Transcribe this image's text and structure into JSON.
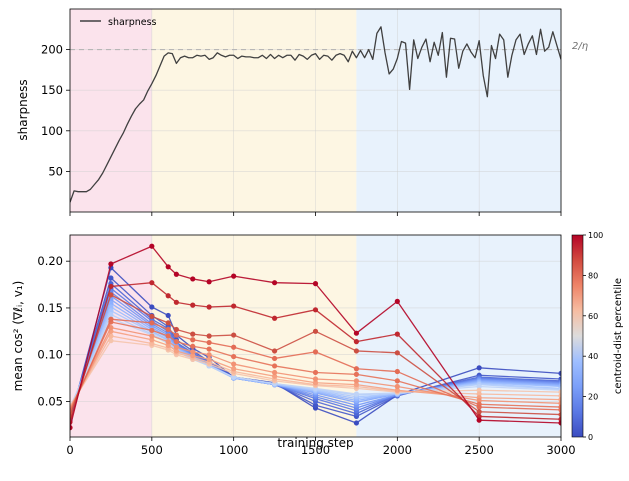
{
  "chart_data": [
    {
      "type": "line",
      "xlabel": "",
      "ylabel": "sharpness",
      "xlim": [
        0,
        3000
      ],
      "ylim": [
        0,
        250
      ],
      "yticks": [
        50,
        100,
        150,
        200
      ],
      "yticklabels": [
        "50",
        "100",
        "150",
        "200"
      ],
      "grid": true,
      "legend_position": "top-left",
      "regions": [
        {
          "x0": 0,
          "x1": 500,
          "color": "#fbe3ec"
        },
        {
          "x0": 500,
          "x1": 1750,
          "color": "#fdf6e3"
        },
        {
          "x0": 1750,
          "x1": 3000,
          "color": "#e8f2fc"
        }
      ],
      "reference_line": {
        "y": 200,
        "label": "2/η",
        "color": "#b0b0b0"
      },
      "series": [
        {
          "name": "sharpness",
          "color": "#404040",
          "x": [
            0,
            25,
            50,
            75,
            100,
            125,
            150,
            175,
            200,
            225,
            250,
            275,
            300,
            325,
            350,
            375,
            400,
            425,
            450,
            475,
            500,
            525,
            550,
            575,
            600,
            625,
            650,
            675,
            700,
            725,
            750,
            775,
            800,
            825,
            850,
            875,
            900,
            925,
            950,
            975,
            1000,
            1025,
            1050,
            1075,
            1100,
            1125,
            1150,
            1175,
            1200,
            1225,
            1250,
            1275,
            1300,
            1325,
            1350,
            1375,
            1400,
            1425,
            1450,
            1475,
            1500,
            1525,
            1550,
            1575,
            1600,
            1625,
            1650,
            1675,
            1700,
            1725,
            1750,
            1775,
            1800,
            1825,
            1850,
            1875,
            1900,
            1925,
            1950,
            1975,
            2000,
            2025,
            2050,
            2075,
            2100,
            2125,
            2150,
            2175,
            2200,
            2225,
            2250,
            2275,
            2300,
            2325,
            2350,
            2375,
            2400,
            2425,
            2450,
            2475,
            2500,
            2525,
            2550,
            2575,
            2600,
            2625,
            2650,
            2675,
            2700,
            2725,
            2750,
            2775,
            2800,
            2825,
            2850,
            2875,
            2900,
            2925,
            2950,
            2975,
            3000
          ],
          "y": [
            12,
            26,
            25,
            25,
            25,
            28,
            34,
            40,
            48,
            58,
            68,
            78,
            88,
            97,
            108,
            118,
            127,
            133,
            138,
            149,
            158,
            168,
            180,
            192,
            196,
            195,
            183,
            190,
            192,
            190,
            190,
            193,
            192,
            193,
            188,
            190,
            196,
            193,
            191,
            193,
            193,
            189,
            192,
            191,
            191,
            190,
            190,
            193,
            189,
            194,
            189,
            193,
            190,
            193,
            193,
            187,
            194,
            192,
            188,
            193,
            195,
            188,
            193,
            192,
            187,
            193,
            195,
            193,
            185,
            198,
            190,
            199,
            190,
            200,
            188,
            220,
            228,
            196,
            170,
            176,
            189,
            210,
            208,
            151,
            212,
            189,
            203,
            213,
            185,
            209,
            193,
            221,
            166,
            214,
            213,
            177,
            198,
            207,
            197,
            190,
            211,
            168,
            142,
            205,
            189,
            219,
            212,
            166,
            193,
            212,
            219,
            194,
            207,
            217,
            194,
            225,
            198,
            203,
            222,
            205,
            188
          ]
        }
      ]
    },
    {
      "type": "line",
      "xlabel": "training step",
      "ylabel": "mean cos² (∇ℓᵢ, v₁)",
      "xlim": [
        0,
        3000
      ],
      "ylim": [
        0.012,
        0.228
      ],
      "xticks": [
        0,
        500,
        1000,
        1500,
        2000,
        2500,
        3000
      ],
      "xticklabels": [
        "0",
        "500",
        "1000",
        "1500",
        "2000",
        "2500",
        "3000"
      ],
      "yticks": [
        0.05,
        0.1,
        0.15,
        0.2
      ],
      "yticklabels": [
        "0.05",
        "0.10",
        "0.15",
        "0.20"
      ],
      "grid": true,
      "colorbar": {
        "label": "centroid-dist percentile",
        "ticks": [
          0,
          20,
          40,
          60,
          80,
          100
        ],
        "ticklabels": [
          "0",
          "20",
          "40",
          "60",
          "80",
          "100"
        ],
        "colormap": "coolwarm"
      },
      "x": [
        0,
        250,
        500,
        600,
        650,
        750,
        850,
        1000,
        1250,
        1500,
        1750,
        2000,
        2500,
        3000
      ],
      "series": [
        {
          "percentile": 0,
          "color": "#3b4cc0",
          "values": [
            0.03,
            0.193,
            0.151,
            0.142,
            0.121,
            0.107,
            0.097,
            0.076,
            0.07,
            0.043,
            0.027,
            0.057,
            0.086,
            0.08
          ]
        },
        {
          "percentile": 5,
          "color": "#4257c9",
          "values": [
            0.032,
            0.182,
            0.142,
            0.13,
            0.116,
            0.104,
            0.093,
            0.076,
            0.069,
            0.046,
            0.034,
            0.056,
            0.078,
            0.074
          ]
        },
        {
          "percentile": 10,
          "color": "#4c66d6",
          "values": [
            0.034,
            0.176,
            0.138,
            0.128,
            0.113,
            0.102,
            0.092,
            0.075,
            0.068,
            0.05,
            0.037,
            0.057,
            0.076,
            0.072
          ]
        },
        {
          "percentile": 15,
          "color": "#5977e3",
          "values": [
            0.036,
            0.171,
            0.136,
            0.125,
            0.112,
            0.101,
            0.091,
            0.075,
            0.068,
            0.053,
            0.04,
            0.057,
            0.075,
            0.071
          ]
        },
        {
          "percentile": 20,
          "color": "#6687ed",
          "values": [
            0.037,
            0.167,
            0.133,
            0.123,
            0.111,
            0.1,
            0.09,
            0.075,
            0.068,
            0.055,
            0.043,
            0.057,
            0.074,
            0.07
          ]
        },
        {
          "percentile": 25,
          "color": "#7396f5",
          "values": [
            0.038,
            0.163,
            0.131,
            0.121,
            0.11,
            0.099,
            0.09,
            0.075,
            0.068,
            0.057,
            0.046,
            0.057,
            0.073,
            0.069
          ]
        },
        {
          "percentile": 30,
          "color": "#80a3fa",
          "values": [
            0.039,
            0.159,
            0.129,
            0.119,
            0.109,
            0.098,
            0.089,
            0.075,
            0.068,
            0.059,
            0.049,
            0.058,
            0.072,
            0.068
          ]
        },
        {
          "percentile": 35,
          "color": "#8db0fe",
          "values": [
            0.04,
            0.155,
            0.127,
            0.118,
            0.108,
            0.098,
            0.089,
            0.075,
            0.068,
            0.06,
            0.051,
            0.058,
            0.071,
            0.067
          ]
        },
        {
          "percentile": 40,
          "color": "#9abbff",
          "values": [
            0.041,
            0.151,
            0.125,
            0.116,
            0.107,
            0.097,
            0.088,
            0.075,
            0.068,
            0.061,
            0.053,
            0.058,
            0.07,
            0.066
          ]
        },
        {
          "percentile": 45,
          "color": "#a7c5fe",
          "values": [
            0.042,
            0.147,
            0.124,
            0.115,
            0.106,
            0.096,
            0.088,
            0.076,
            0.069,
            0.062,
            0.055,
            0.058,
            0.069,
            0.064
          ]
        },
        {
          "percentile": 50,
          "color": "#b3cdfb",
          "values": [
            0.043,
            0.143,
            0.122,
            0.113,
            0.105,
            0.096,
            0.088,
            0.076,
            0.069,
            0.063,
            0.057,
            0.059,
            0.068,
            0.063
          ]
        },
        {
          "percentile": 55,
          "color": "#bfd3f6",
          "values": [
            0.044,
            0.139,
            0.121,
            0.112,
            0.104,
            0.095,
            0.088,
            0.076,
            0.069,
            0.064,
            0.058,
            0.059,
            0.066,
            0.062
          ]
        },
        {
          "percentile": 60,
          "color": "#f5c4ac",
          "values": [
            0.045,
            0.115,
            0.11,
            0.105,
            0.1,
            0.095,
            0.09,
            0.08,
            0.072,
            0.067,
            0.064,
            0.06,
            0.062,
            0.06
          ]
        },
        {
          "percentile": 65,
          "color": "#f7b89c",
          "values": [
            0.044,
            0.12,
            0.112,
            0.107,
            0.102,
            0.097,
            0.092,
            0.082,
            0.074,
            0.068,
            0.066,
            0.061,
            0.058,
            0.056
          ]
        },
        {
          "percentile": 70,
          "color": "#f5a081",
          "values": [
            0.043,
            0.125,
            0.116,
            0.11,
            0.104,
            0.099,
            0.095,
            0.085,
            0.077,
            0.07,
            0.068,
            0.062,
            0.054,
            0.052
          ]
        },
        {
          "percentile": 75,
          "color": "#f29274",
          "values": [
            0.042,
            0.129,
            0.12,
            0.114,
            0.108,
            0.103,
            0.1,
            0.09,
            0.081,
            0.074,
            0.072,
            0.066,
            0.051,
            0.048
          ]
        },
        {
          "percentile": 80,
          "color": "#e67259",
          "values": [
            0.04,
            0.135,
            0.126,
            0.12,
            0.114,
            0.109,
            0.106,
            0.098,
            0.088,
            0.081,
            0.079,
            0.072,
            0.047,
            0.044
          ]
        },
        {
          "percentile": 85,
          "color": "#e36c55",
          "values": [
            0.038,
            0.138,
            0.134,
            0.127,
            0.121,
            0.116,
            0.113,
            0.108,
            0.096,
            0.103,
            0.085,
            0.082,
            0.044,
            0.041
          ]
        },
        {
          "percentile": 90,
          "color": "#cc4f42",
          "values": [
            0.034,
            0.164,
            0.141,
            0.134,
            0.127,
            0.122,
            0.12,
            0.121,
            0.104,
            0.125,
            0.104,
            0.102,
            0.039,
            0.036
          ]
        },
        {
          "percentile": 95,
          "color": "#c0282f",
          "values": [
            0.028,
            0.173,
            0.177,
            0.163,
            0.156,
            0.153,
            0.151,
            0.152,
            0.139,
            0.148,
            0.114,
            0.122,
            0.034,
            0.031
          ]
        },
        {
          "percentile": 100,
          "color": "#b40426",
          "values": [
            0.022,
            0.197,
            0.216,
            0.194,
            0.186,
            0.181,
            0.178,
            0.184,
            0.177,
            0.176,
            0.123,
            0.157,
            0.03,
            0.027
          ]
        }
      ]
    }
  ]
}
